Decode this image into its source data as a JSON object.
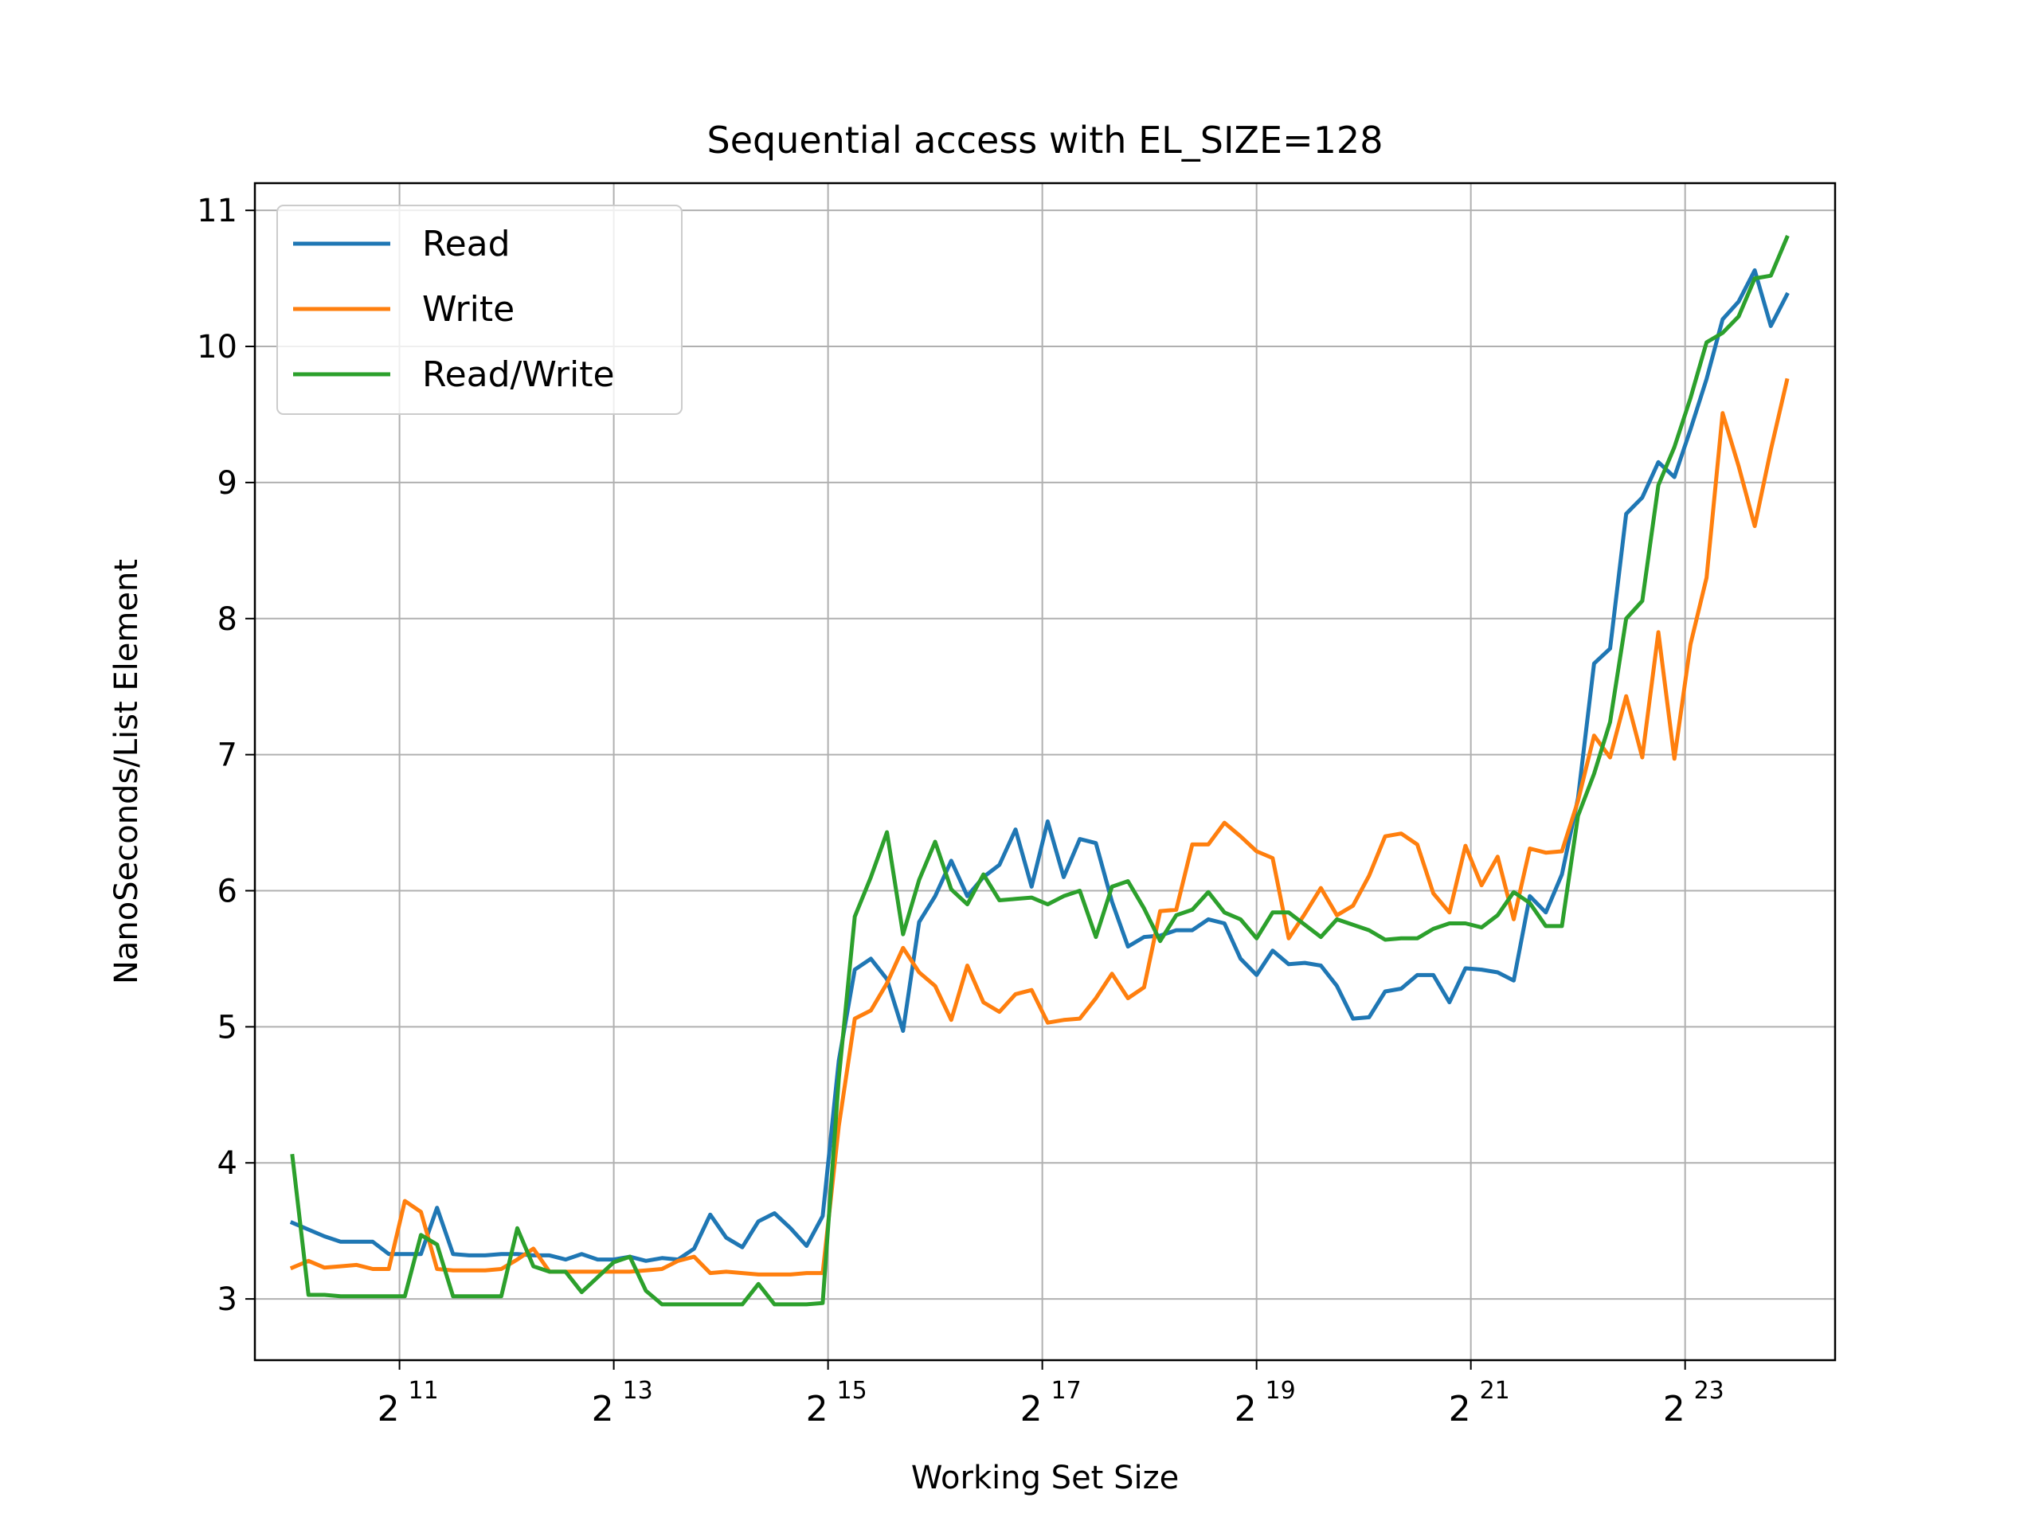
{
  "chart_data": {
    "type": "line",
    "title": "Sequential access with EL_SIZE=128",
    "xlabel": "Working Set Size",
    "ylabel": "NanoSeconds/List Element",
    "x_scale": "log2",
    "x_tick_base": "2",
    "x_ticks": [
      {
        "exp": 11,
        "label": "11"
      },
      {
        "exp": 13,
        "label": "13"
      },
      {
        "exp": 15,
        "label": "15"
      },
      {
        "exp": 17,
        "label": "17"
      },
      {
        "exp": 19,
        "label": "19"
      },
      {
        "exp": 21,
        "label": "21"
      },
      {
        "exp": 23,
        "label": "23"
      }
    ],
    "y_ticks": [
      "3",
      "4",
      "5",
      "6",
      "7",
      "8",
      "9",
      "10",
      "11"
    ],
    "xlim_exp": [
      9.65,
      24.4
    ],
    "ylim": [
      2.55,
      11.2
    ],
    "grid": true,
    "legend_position": "top-left",
    "x_start_exp": 10.0,
    "x_step_exp": 0.15,
    "series": [
      {
        "name": "Read",
        "color": "#1f77b4",
        "values": [
          3.56,
          3.51,
          3.46,
          3.42,
          3.42,
          3.42,
          3.33,
          3.33,
          3.33,
          3.67,
          3.33,
          3.32,
          3.32,
          3.33,
          3.33,
          3.32,
          3.32,
          3.29,
          3.33,
          3.29,
          3.29,
          3.31,
          3.28,
          3.3,
          3.29,
          3.37,
          3.62,
          3.45,
          3.38,
          3.57,
          3.63,
          3.52,
          3.39,
          3.61,
          4.75,
          5.42,
          5.5,
          5.35,
          4.97,
          5.77,
          5.96,
          6.22,
          5.96,
          6.1,
          6.19,
          6.45,
          6.03,
          6.51,
          6.1,
          6.38,
          6.35,
          5.92,
          5.59,
          5.66,
          5.67,
          5.71,
          5.71,
          5.79,
          5.76,
          5.5,
          5.38,
          5.56,
          5.46,
          5.47,
          5.45,
          5.3,
          5.06,
          5.07,
          5.26,
          5.28,
          5.38,
          5.38,
          5.18,
          5.43,
          5.42,
          5.4,
          5.34,
          5.96,
          5.84,
          6.12,
          6.68,
          7.67,
          7.78,
          8.77,
          8.89,
          9.15,
          9.04,
          9.39,
          9.76,
          10.2,
          10.33,
          10.56,
          10.15,
          10.38
        ]
      },
      {
        "name": "Write",
        "color": "#ff7f0e",
        "values": [
          3.23,
          3.28,
          3.23,
          3.24,
          3.25,
          3.22,
          3.22,
          3.72,
          3.64,
          3.22,
          3.21,
          3.21,
          3.21,
          3.22,
          3.29,
          3.37,
          3.2,
          3.2,
          3.2,
          3.2,
          3.2,
          3.2,
          3.21,
          3.22,
          3.28,
          3.31,
          3.19,
          3.2,
          3.19,
          3.18,
          3.18,
          3.18,
          3.19,
          3.19,
          4.27,
          5.06,
          5.12,
          5.32,
          5.58,
          5.4,
          5.3,
          5.05,
          5.45,
          5.18,
          5.11,
          5.24,
          5.27,
          5.03,
          5.05,
          5.06,
          5.21,
          5.39,
          5.21,
          5.29,
          5.85,
          5.86,
          6.34,
          6.34,
          6.5,
          6.4,
          6.29,
          6.24,
          5.65,
          5.83,
          6.02,
          5.82,
          5.89,
          6.11,
          6.4,
          6.42,
          6.34,
          5.98,
          5.84,
          6.33,
          6.04,
          6.25,
          5.79,
          6.31,
          6.28,
          6.29,
          6.66,
          7.14,
          6.98,
          7.43,
          6.98,
          7.9,
          6.97,
          7.81,
          8.3,
          9.51,
          9.12,
          8.68,
          9.24,
          9.75
        ]
      },
      {
        "name": "Read/Write",
        "color": "#2ca02c",
        "values": [
          4.05,
          3.03,
          3.03,
          3.02,
          3.02,
          3.02,
          3.02,
          3.02,
          3.47,
          3.4,
          3.02,
          3.02,
          3.02,
          3.02,
          3.52,
          3.24,
          3.2,
          3.2,
          3.05,
          3.16,
          3.27,
          3.31,
          3.06,
          2.96,
          2.96,
          2.96,
          2.96,
          2.96,
          2.96,
          3.11,
          2.96,
          2.96,
          2.96,
          2.97,
          4.62,
          5.81,
          6.1,
          6.43,
          5.68,
          6.08,
          6.36,
          6.01,
          5.9,
          6.12,
          5.93,
          5.94,
          5.95,
          5.9,
          5.96,
          6.0,
          5.66,
          6.03,
          6.07,
          5.87,
          5.63,
          5.82,
          5.86,
          5.99,
          5.84,
          5.79,
          5.65,
          5.84,
          5.84,
          5.75,
          5.66,
          5.79,
          5.75,
          5.71,
          5.64,
          5.65,
          5.65,
          5.72,
          5.76,
          5.76,
          5.73,
          5.82,
          5.99,
          5.91,
          5.74,
          5.74,
          6.55,
          6.86,
          7.24,
          8.0,
          8.13,
          8.98,
          9.26,
          9.62,
          10.03,
          10.1,
          10.22,
          10.5,
          10.52,
          10.8
        ]
      }
    ]
  }
}
